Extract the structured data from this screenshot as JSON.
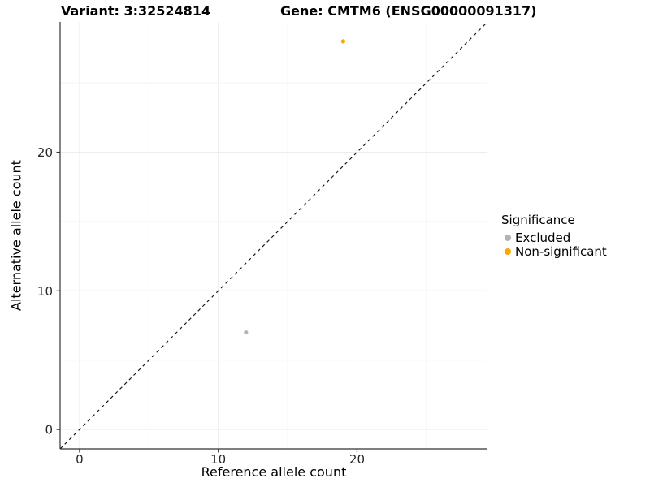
{
  "chart_data": {
    "type": "scatter",
    "titles": {
      "left": "Variant: 3:32524814",
      "right": "Gene: CMTM6 (ENSG00000091317)"
    },
    "xlabel": "Reference allele count",
    "ylabel": "Alternative allele count",
    "xlim": [
      -1.4,
      29.4
    ],
    "ylim": [
      -1.4,
      29.4
    ],
    "xticks": [
      0,
      10,
      20
    ],
    "yticks": [
      0,
      10,
      20
    ],
    "x_minor_gridlines": [
      5,
      15,
      25
    ],
    "y_minor_gridlines": [
      5,
      15,
      25
    ],
    "grid": "major+minor",
    "legend_title": "Significance",
    "legend_position": "right",
    "identity_line": {
      "slope": 1,
      "intercept": 0,
      "style": "dashed"
    },
    "series": [
      {
        "name": "Excluded",
        "color": "#b3b3b3",
        "points": [
          [
            12,
            7
          ]
        ]
      },
      {
        "name": "Non-significant",
        "color": "#ffa500",
        "points": [
          [
            19,
            28
          ]
        ]
      }
    ],
    "colors": {
      "grid_major": "#ededed",
      "grid_minor": "#f4f4f4",
      "axis_line": "#333333",
      "identity_line": "#1a1a1a",
      "tick_mark": "#333333",
      "background": "#ffffff"
    }
  }
}
